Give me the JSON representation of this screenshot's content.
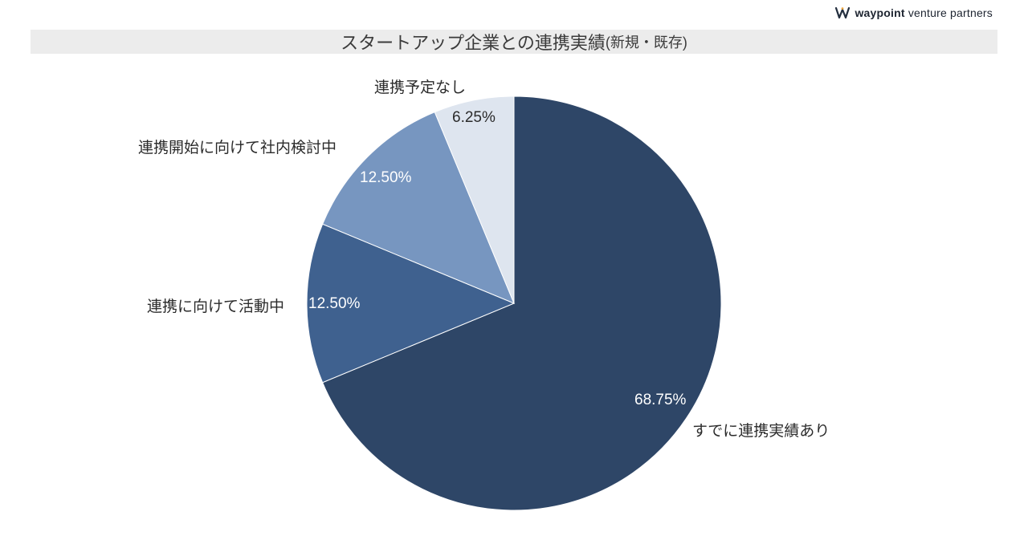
{
  "logo": {
    "brand_bold": "waypoint",
    "brand_rest": "venture partners"
  },
  "header": {
    "title_main": "スタートアップ企業との連携実績",
    "title_sub": "(新規・既存)"
  },
  "chart_data": {
    "type": "pie",
    "title": "スタートアップ企業との連携実績(新規・既存)",
    "direction": "clockwise",
    "start_angle_deg": 0,
    "legend_position": "none",
    "slices": [
      {
        "label": "すでに連携実績あり",
        "value": 68.75,
        "pct_label": "68.75%",
        "color": "#2e4667"
      },
      {
        "label": "連携に向けて活動中",
        "value": 12.5,
        "pct_label": "12.50%",
        "color": "#3f618f"
      },
      {
        "label": "連携開始に向けて社内検討中",
        "value": 12.5,
        "pct_label": "12.50%",
        "color": "#7796c0"
      },
      {
        "label": "連携予定なし",
        "value": 6.25,
        "pct_label": "6.25%",
        "color": "#dee5ef"
      }
    ]
  }
}
